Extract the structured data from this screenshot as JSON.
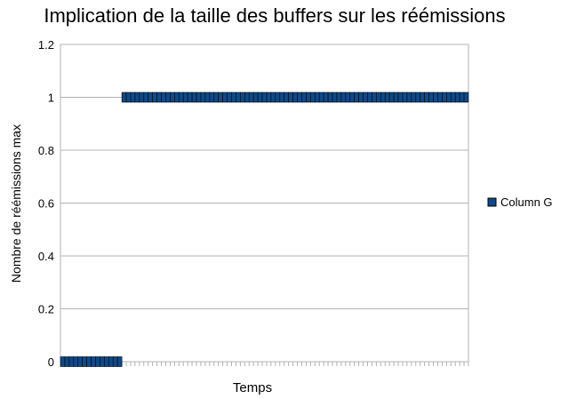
{
  "chart_data": {
    "type": "line",
    "title": "Implication de la taille des buffers sur les réémissions",
    "xlabel": "Temps",
    "ylabel": "Nombre de réémissions max",
    "ylim": [
      0,
      1.2
    ],
    "yticks": [
      "0",
      "0.2",
      "0.4",
      "0.6",
      "0.8",
      "1",
      "1.2"
    ],
    "ytick_values": [
      0,
      0.2,
      0.4,
      0.6,
      0.8,
      1,
      1.2
    ],
    "grid": true,
    "legend": {
      "position": "right"
    },
    "series": [
      {
        "name": "Column G",
        "color": "#0c4a8a",
        "values": [
          0,
          0,
          0,
          0,
          0,
          0,
          0,
          0,
          0,
          0,
          0,
          0,
          0,
          0,
          1,
          1,
          1,
          1,
          1,
          1,
          1,
          1,
          1,
          1,
          1,
          1,
          1,
          1,
          1,
          1,
          1,
          1,
          1,
          1,
          1,
          1,
          1,
          1,
          1,
          1,
          1,
          1,
          1,
          1,
          1,
          1,
          1,
          1,
          1,
          1,
          1,
          1,
          1,
          1,
          1,
          1,
          1,
          1,
          1,
          1,
          1,
          1,
          1,
          1,
          1,
          1,
          1,
          1,
          1,
          1,
          1,
          1,
          1,
          1,
          1,
          1,
          1,
          1,
          1,
          1,
          1,
          1,
          1,
          1,
          1,
          1,
          1,
          1,
          1,
          1,
          1,
          1,
          1
        ]
      }
    ]
  }
}
